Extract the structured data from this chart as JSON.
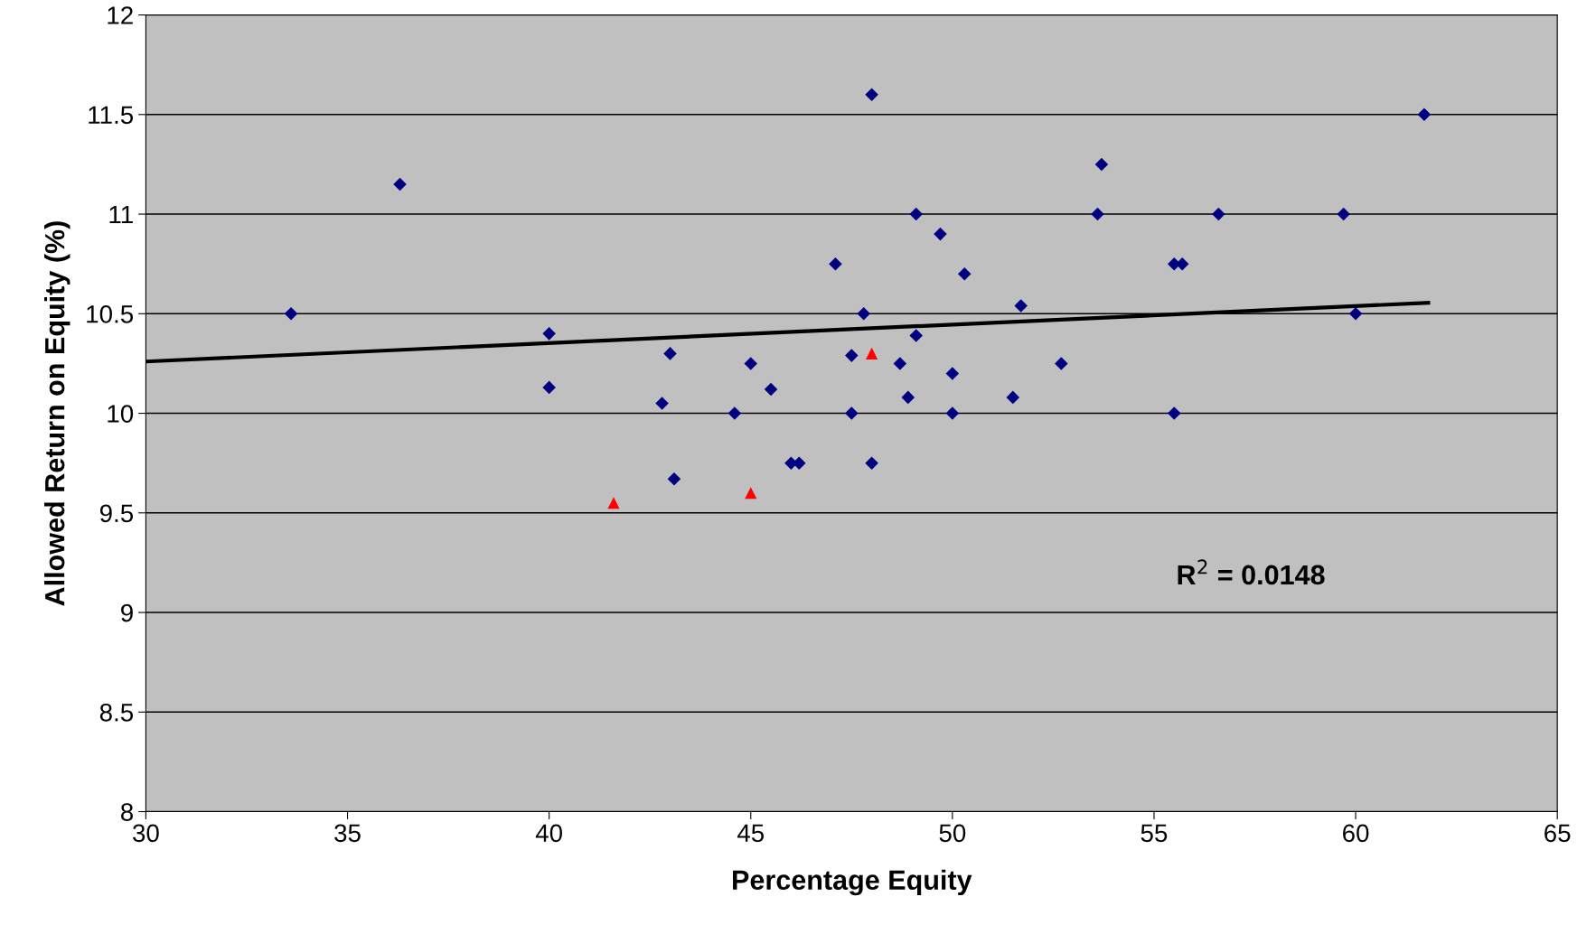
{
  "chart_data": {
    "type": "scatter",
    "xlabel": "Percentage Equity",
    "ylabel": "Allowed Return on Equity (%)",
    "xlim": [
      30,
      65
    ],
    "xticks": [
      30,
      35,
      40,
      45,
      50,
      55,
      60,
      65
    ],
    "ylim": [
      8,
      12
    ],
    "yticks": [
      8,
      {
        "value": 8.5,
        "label": "8.5"
      },
      9,
      {
        "value": 9.5,
        "label": "9.5"
      },
      10,
      {
        "value": 10.5,
        "label": "10.5"
      },
      11,
      {
        "value": 11.5,
        "label": "11.5"
      },
      12
    ],
    "grid": "y",
    "legend": false,
    "annotations": [
      "R$^{2}$ = 0.0148"
    ],
    "series": [
      {
        "color": "#000080",
        "marker": "diamond",
        "x": [
          33.6,
          36.3,
          40.0,
          40.0,
          43.0,
          42.8,
          43.1,
          44.6,
          45.0,
          45.5,
          46.0,
          46.2,
          47.1,
          47.5,
          47.5,
          47.8,
          48.0,
          48.0,
          48.7,
          48.9,
          49.1,
          49.1,
          49.7,
          50.0,
          50.0,
          50.3,
          51.5,
          51.7,
          52.7,
          53.7,
          53.6,
          55.5,
          55.7,
          55.5,
          56.6,
          59.7,
          60.0,
          61.7
        ],
        "values": [
          10.5,
          11.15,
          10.4,
          10.13,
          10.3,
          10.05,
          9.67,
          10.0,
          10.25,
          10.12,
          9.75,
          9.75,
          10.75,
          10.29,
          10.0,
          10.5,
          11.6,
          9.75,
          10.25,
          10.08,
          10.39,
          11.0,
          10.9,
          10.2,
          10.0,
          10.7,
          10.08,
          10.54,
          10.25,
          11.25,
          11.0,
          10.75,
          10.75,
          10.0,
          11.0,
          11.0,
          10.5,
          11.5
        ]
      },
      {
        "color": "#ff0000",
        "marker": "triangle",
        "x": [
          41.6,
          45.0,
          48.0
        ],
        "values": [
          9.55,
          9.6,
          10.3
        ]
      },
      {
        "type": "line",
        "color": "#000000",
        "marker": "none",
        "line_style": "solid",
        "x": [
          30,
          61.8
        ],
        "values": [
          10.26,
          10.555
        ]
      }
    ]
  }
}
